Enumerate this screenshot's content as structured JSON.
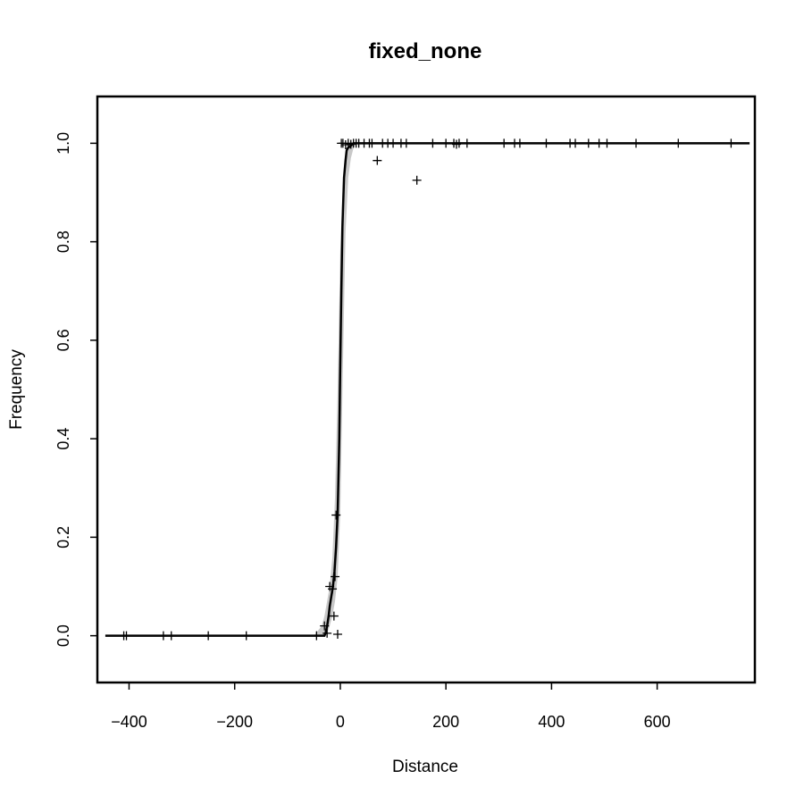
{
  "chart_data": {
    "type": "scatter",
    "title": "fixed_none",
    "xlabel": "Distance",
    "ylabel": "Frequency",
    "xlim": [
      -460,
      785
    ],
    "ylim": [
      -0.095,
      1.095
    ],
    "x_ticks": [
      -400,
      -200,
      0,
      200,
      400,
      600
    ],
    "x_tick_labels": [
      "−400",
      "−200",
      "0",
      "200",
      "400",
      "600"
    ],
    "y_ticks": [
      0.0,
      0.2,
      0.4,
      0.6,
      0.8,
      1.0
    ],
    "y_tick_labels": [
      "0.0",
      "0.2",
      "0.4",
      "0.6",
      "0.8",
      "1.0"
    ],
    "grid": false,
    "legend": "none",
    "colors": {
      "line": "#000000",
      "band": "#c8c8c8",
      "points": "#000000"
    },
    "fit_line": {
      "x": [
        -445,
        -30,
        -28,
        -25,
        -22,
        -20,
        -17,
        -14,
        -11,
        -8,
        -5,
        -2,
        0,
        2,
        4,
        7,
        10,
        12,
        14,
        20,
        25,
        30,
        60,
        200,
        500,
        775
      ],
      "y": [
        0,
        0,
        0.005,
        0.02,
        0.04,
        0.06,
        0.08,
        0.1,
        0.13,
        0.18,
        0.25,
        0.4,
        0.55,
        0.7,
        0.83,
        0.93,
        0.965,
        0.985,
        0.99,
        0.995,
        1.0,
        1.0,
        1.0,
        1.0,
        1.0,
        1.0
      ]
    },
    "ci_band": {
      "x": [
        -50,
        -35,
        -30,
        -25,
        -20,
        -15,
        -10,
        -5,
        0,
        5,
        10,
        15,
        20,
        25,
        30,
        40
      ],
      "upper": [
        0,
        0.02,
        0.04,
        0.07,
        0.1,
        0.16,
        0.28,
        0.5,
        0.78,
        0.92,
        0.97,
        0.99,
        1.0,
        1.0,
        1.0,
        1.0
      ],
      "lower": [
        0,
        0,
        0,
        0.005,
        0.02,
        0.04,
        0.07,
        0.12,
        0.25,
        0.55,
        0.82,
        0.93,
        0.97,
        0.99,
        1.0,
        1.0
      ]
    },
    "points": {
      "x": [
        -410,
        -405,
        -335,
        -320,
        -250,
        -178,
        -45,
        -30,
        -25,
        -20,
        -15,
        -12,
        -10,
        -8,
        -5,
        2,
        5,
        10,
        15,
        20,
        25,
        30,
        35,
        45,
        55,
        60,
        70,
        80,
        90,
        100,
        115,
        125,
        145,
        175,
        200,
        215,
        220,
        225,
        240,
        310,
        330,
        340,
        390,
        435,
        445,
        470,
        490,
        505,
        560,
        640,
        740
      ],
      "y": [
        0,
        0,
        0,
        0,
        0,
        0,
        0,
        0.02,
        0.005,
        0.1,
        0.095,
        0.04,
        0.12,
        0.245,
        0.003,
        1.0,
        1.0,
        0.997,
        1.0,
        0.998,
        1.0,
        1.0,
        1.0,
        1.0,
        1.0,
        1.0,
        0.965,
        1.0,
        1.0,
        1.0,
        1.0,
        1.0,
        0.925,
        1.0,
        1.0,
        1.0,
        0.998,
        1.0,
        1.0,
        1.0,
        1.0,
        1.0,
        1.0,
        1.0,
        1.0,
        1.0,
        1.0,
        1.0,
        1.0,
        1.0,
        1.0
      ]
    }
  }
}
